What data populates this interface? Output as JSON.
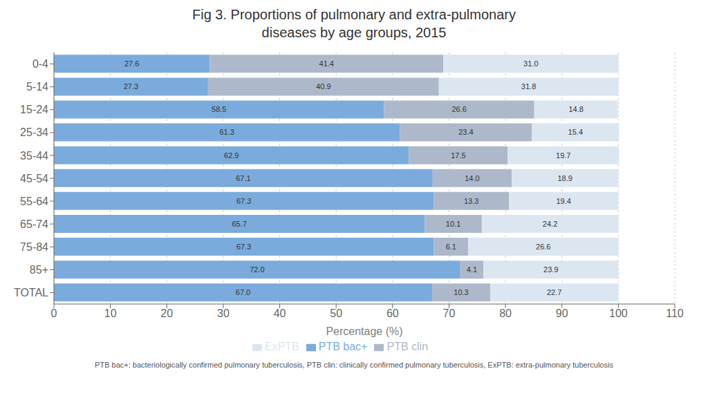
{
  "chart_data": {
    "type": "bar",
    "orientation": "horizontal",
    "stacked": true,
    "title": "Fig 3. Proportions of pulmonary and extra-pulmonary\ndiseases by age groups, 2015",
    "categories": [
      "0-4",
      "5-14",
      "15-24",
      "25-34",
      "35-44",
      "45-54",
      "55-64",
      "65-74",
      "75-84",
      "85+",
      "TOTAL"
    ],
    "series": [
      {
        "name": "PTB bac+",
        "color": "#7aabdc",
        "values": [
          27.6,
          27.3,
          58.5,
          61.3,
          62.9,
          67.1,
          67.3,
          65.7,
          67.3,
          72.0,
          67.0
        ],
        "value_labels": [
          "27.6",
          "27.3",
          "58.5",
          "61.3",
          "62.9",
          "67.1",
          "67.3",
          "65.7",
          "67.3",
          "72.0",
          "67.0"
        ]
      },
      {
        "name": "PTB clin",
        "color": "#adb9ca",
        "values": [
          41.4,
          40.9,
          26.6,
          23.4,
          17.5,
          14.0,
          13.3,
          10.1,
          6.1,
          4.1,
          10.3
        ],
        "value_labels": [
          "41.4",
          "40.9",
          "26.6",
          "23.4",
          "17.5",
          "14.0",
          "13.3",
          "10.1",
          "6.1",
          "4.1",
          "10.3"
        ]
      },
      {
        "name": "ExPTB",
        "color": "#dce6f1",
        "values": [
          31.0,
          31.8,
          14.8,
          15.4,
          19.7,
          18.9,
          19.4,
          24.2,
          26.6,
          23.9,
          22.7
        ],
        "value_labels": [
          "31.0",
          "31.8",
          "14.8",
          "15.4",
          "19.7",
          "18.9",
          "19.4",
          "24.2",
          "26.6",
          "23.9",
          "22.7"
        ]
      }
    ],
    "xlabel": "Percentage (%)",
    "xlim": [
      0,
      110
    ],
    "xticks": [
      0,
      10,
      20,
      30,
      40,
      50,
      60,
      70,
      80,
      90,
      100,
      110
    ],
    "grid": true,
    "legend": "bottom",
    "data_labels": true,
    "annotations": [
      "PTB bac+: bacteriologically confirmed pulmonary tuberculosis, PTB clin: clinically confirmed pulmonary tuberculosis, ExPTB: extra-pulmonary tuberculosis"
    ]
  }
}
